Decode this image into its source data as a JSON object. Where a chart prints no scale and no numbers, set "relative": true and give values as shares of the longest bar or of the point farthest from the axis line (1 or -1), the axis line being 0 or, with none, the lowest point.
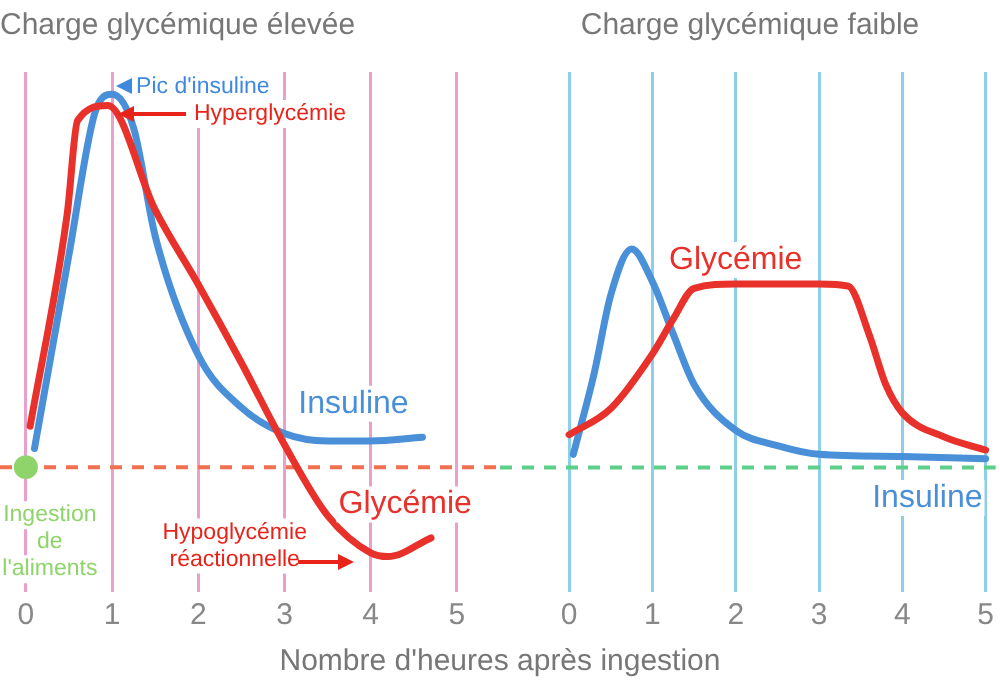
{
  "chart_data": [
    {
      "type": "line",
      "title": "Charge glycémique élevée",
      "xlabel": "Nombre d'heures après ingestion",
      "relative": true,
      "xlim": [
        -0.3,
        5.5
      ],
      "xticks": [
        0,
        1,
        2,
        3,
        4,
        5
      ],
      "grid": "x",
      "tick_labels": "x",
      "legend": false,
      "marker": "none",
      "line_style": "solid",
      "series": [
        {
          "name": "Glycémie",
          "color": "#e8312a",
          "x": [
            0.05,
            0.48,
            0.6,
            0.95,
            1.5,
            2,
            2.5,
            3,
            3.5,
            4,
            4.2,
            4.7
          ],
          "values": [
            0.11,
            0.68,
            0.93,
            0.97,
            0.69,
            0.49,
            0.28,
            0.06,
            -0.13,
            -0.23,
            -0.24,
            -0.19
          ]
        },
        {
          "name": "Insuline",
          "color": "#4a90d9",
          "x": [
            0.1,
            0.5,
            0.8,
            1,
            1.25,
            1.5,
            2,
            2.5,
            3,
            3.5,
            4,
            4.6
          ],
          "values": [
            0.05,
            0.57,
            0.95,
            1,
            0.91,
            0.62,
            0.3,
            0.16,
            0.09,
            0.07,
            0.07,
            0.08
          ]
        }
      ],
      "ref_lines": [
        {
          "axis": "y",
          "value": 0,
          "color": "#f07050",
          "line_style": "dashed"
        }
      ],
      "annotations": [
        {
          "text": "Pic d'insuline",
          "x": 1,
          "y": 1
        },
        "Hyperglycémie",
        {
          "text": "Ingestion de l'aliments",
          "x": 0,
          "y": 0
        },
        {
          "text": "Hypoglycémie réactionnelle",
          "x": 4,
          "y": -0.24
        }
      ]
    },
    {
      "type": "line",
      "title": "Charge glycémique faible",
      "relative": true,
      "xlim": [
        -0.83,
        5.12
      ],
      "xticks": [
        0,
        1,
        2,
        3,
        4,
        5
      ],
      "grid": "x",
      "tick_labels": "x",
      "legend": false,
      "marker": "none",
      "line_style": "solid",
      "series": [
        {
          "name": "Glycémie",
          "color": "#e8312a",
          "x": [
            0,
            0.5,
            1,
            1.25,
            1.5,
            2,
            3,
            3.35,
            3.6,
            3.8,
            4,
            4.5,
            5
          ],
          "values": [
            0.15,
            0.27,
            0.52,
            0.68,
            0.82,
            0.84,
            0.84,
            0.83,
            0.61,
            0.38,
            0.25,
            0.14,
            0.08
          ]
        },
        {
          "name": "Insuline",
          "color": "#4a90d9",
          "x": [
            0.05,
            0.3,
            0.5,
            0.75,
            1,
            1.25,
            1.5,
            2,
            2.5,
            3,
            4,
            5
          ],
          "values": [
            0.06,
            0.43,
            0.79,
            1,
            0.85,
            0.61,
            0.38,
            0.17,
            0.1,
            0.06,
            0.05,
            0.04
          ]
        }
      ],
      "ref_lines": [
        {
          "axis": "y",
          "value": 0,
          "color": "#5ccf8a",
          "line_style": "dashed"
        }
      ]
    }
  ]
}
